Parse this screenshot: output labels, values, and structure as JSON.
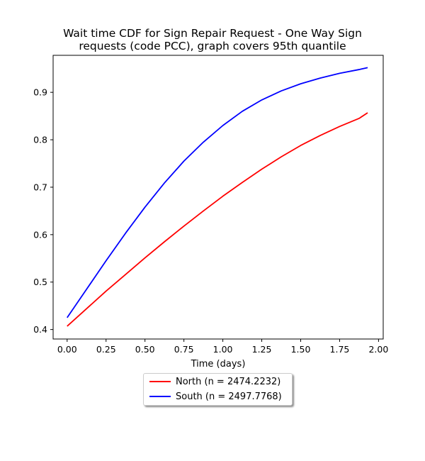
{
  "chart_data": {
    "type": "line",
    "title_lines": [
      "Wait time CDF for Sign Repair Request - One Way Sign",
      "requests (code PCC), graph covers 95th quantile"
    ],
    "xlabel": "Time (days)",
    "ylabel": "",
    "xlim": [
      -0.09,
      2.03
    ],
    "ylim": [
      0.38,
      0.978
    ],
    "xticks": [
      "0.00",
      "0.25",
      "0.50",
      "0.75",
      "1.00",
      "1.25",
      "1.50",
      "1.75",
      "2.00"
    ],
    "yticks": [
      "0.4",
      "0.5",
      "0.6",
      "0.7",
      "0.8",
      "0.9"
    ],
    "grid": false,
    "legend_position": "below-center",
    "series": [
      {
        "name": "North (n = 2474.2232)",
        "color": "#ff0000",
        "x": [
          0.0,
          0.125,
          0.25,
          0.375,
          0.5,
          0.625,
          0.75,
          0.875,
          1.0,
          1.125,
          1.25,
          1.375,
          1.5,
          1.625,
          1.75,
          1.875,
          1.93
        ],
        "y": [
          0.407,
          0.444,
          0.481,
          0.516,
          0.551,
          0.585,
          0.618,
          0.65,
          0.681,
          0.71,
          0.738,
          0.764,
          0.788,
          0.809,
          0.828,
          0.845,
          0.857
        ]
      },
      {
        "name": "South (n = 2497.7768)",
        "color": "#0000ff",
        "x": [
          0.0,
          0.125,
          0.25,
          0.375,
          0.5,
          0.625,
          0.75,
          0.875,
          1.0,
          1.125,
          1.25,
          1.375,
          1.5,
          1.625,
          1.75,
          1.875,
          1.93
        ],
        "y": [
          0.425,
          0.485,
          0.545,
          0.603,
          0.658,
          0.709,
          0.755,
          0.795,
          0.83,
          0.86,
          0.884,
          0.903,
          0.918,
          0.93,
          0.94,
          0.948,
          0.952
        ]
      }
    ]
  }
}
